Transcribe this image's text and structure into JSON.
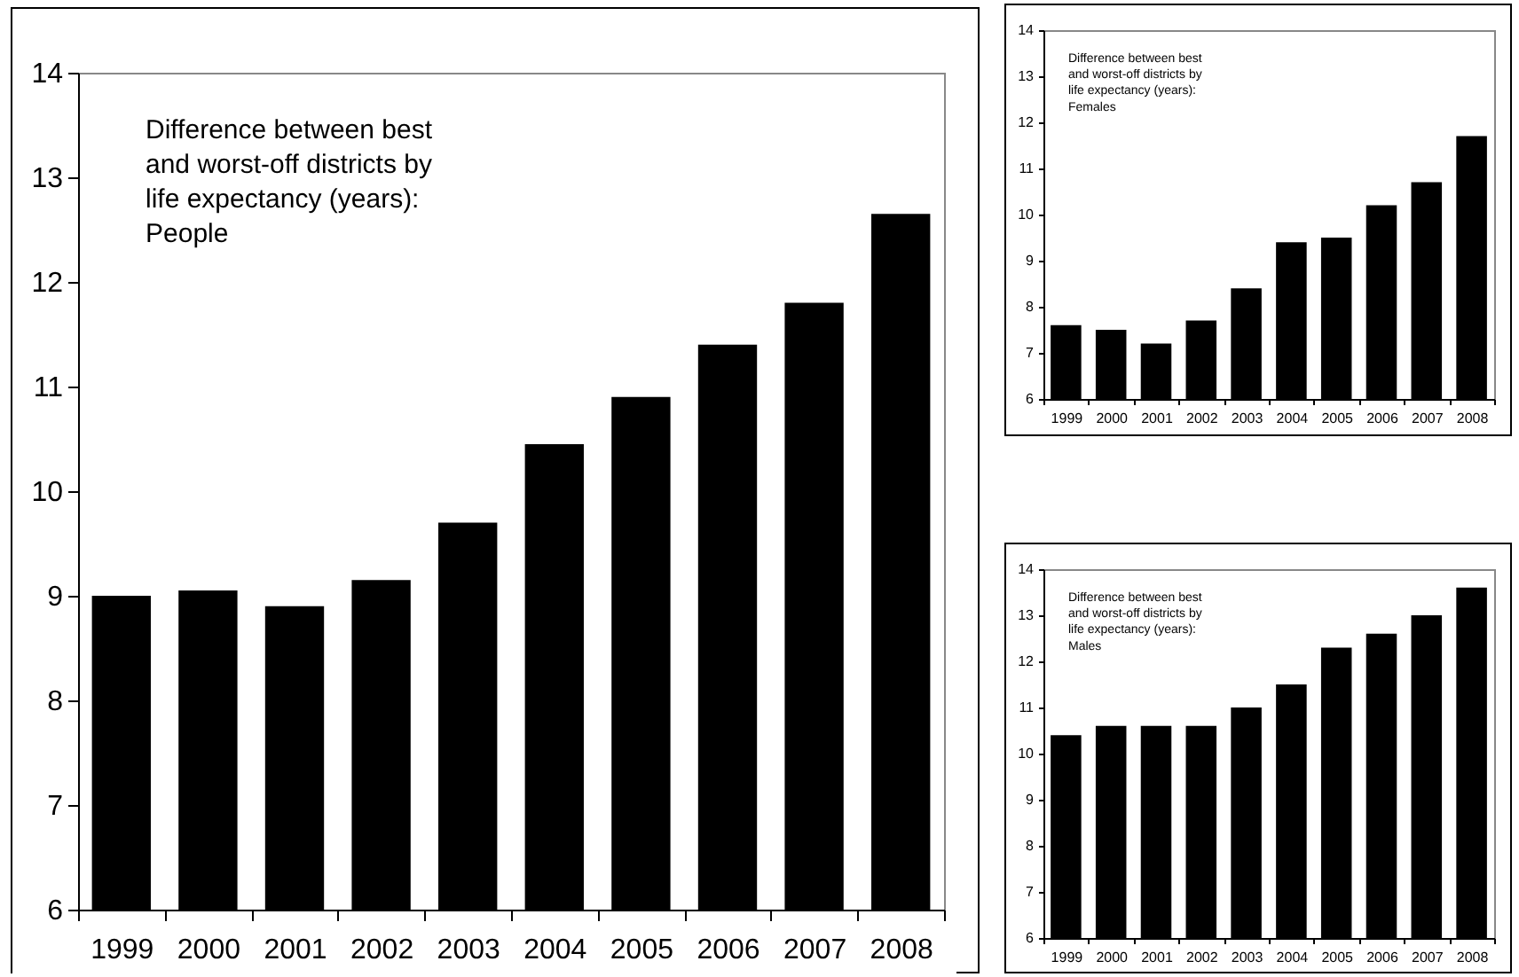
{
  "chart_data": [
    {
      "type": "bar",
      "categories": [
        "1999",
        "2000",
        "2001",
        "2002",
        "2003",
        "2004",
        "2005",
        "2006",
        "2007",
        "2008"
      ],
      "values": [
        9.0,
        9.05,
        8.9,
        9.15,
        9.7,
        10.45,
        10.9,
        11.4,
        11.8,
        12.65
      ],
      "color": "#000000",
      "ylim": [
        6,
        14
      ],
      "yticks": [
        6,
        7,
        8,
        9,
        10,
        11,
        12,
        13,
        14
      ],
      "grid": false,
      "annotations": [
        "Difference between best and worst-off districts by life expectancy (years): People"
      ]
    },
    {
      "type": "bar",
      "categories": [
        "1999",
        "2000",
        "2001",
        "2002",
        "2003",
        "2004",
        "2005",
        "2006",
        "2007",
        "2008"
      ],
      "values": [
        7.6,
        7.5,
        7.2,
        7.7,
        8.4,
        9.4,
        9.5,
        10.2,
        10.7,
        11.7
      ],
      "color": "#000000",
      "ylim": [
        6,
        14
      ],
      "yticks": [
        6,
        7,
        8,
        9,
        10,
        11,
        12,
        13,
        14
      ],
      "grid": false,
      "annotations": [
        "Difference between best and worst-off districts by life expectancy (years): Females"
      ]
    },
    {
      "type": "bar",
      "categories": [
        "1999",
        "2000",
        "2001",
        "2002",
        "2003",
        "2004",
        "2005",
        "2006",
        "2007",
        "2008"
      ],
      "values": [
        10.4,
        10.6,
        10.6,
        10.6,
        11.0,
        11.5,
        12.3,
        12.6,
        13.0,
        13.6
      ],
      "color": "#000000",
      "ylim": [
        6,
        14
      ],
      "yticks": [
        6,
        7,
        8,
        9,
        10,
        11,
        12,
        13,
        14
      ],
      "grid": false,
      "annotations": [
        "Difference between best and worst-off districts by life expectancy (years): Males"
      ]
    }
  ]
}
